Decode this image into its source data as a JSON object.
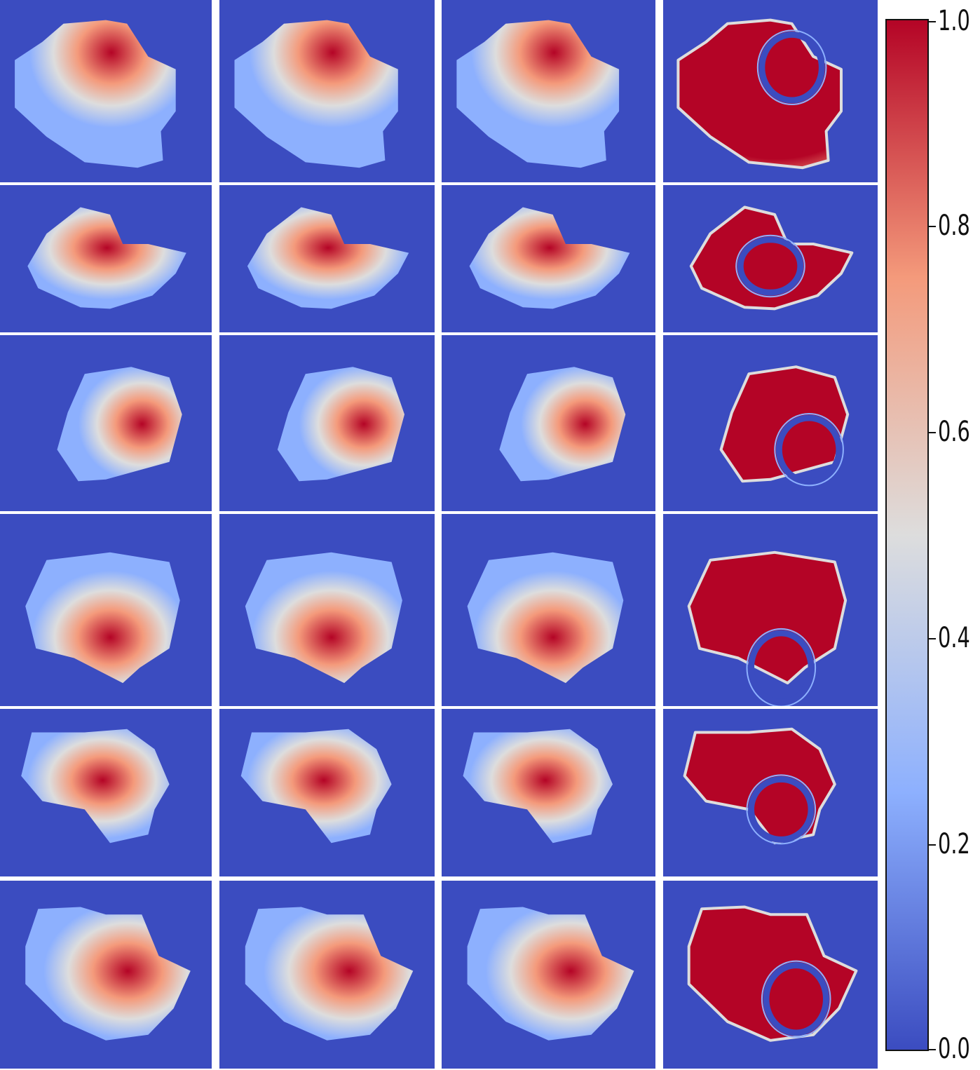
{
  "colormap": {
    "name": "coolwarm",
    "stops": [
      {
        "v": 0.0,
        "color": "#3b4cc0"
      },
      {
        "v": 0.25,
        "color": "#8db0fe"
      },
      {
        "v": 0.5,
        "color": "#dddddd"
      },
      {
        "v": 0.75,
        "color": "#f49a7b"
      },
      {
        "v": 1.0,
        "color": "#b40426"
      }
    ],
    "background": "#3b4cc0"
  },
  "colorbar": {
    "ticks": [
      {
        "value": 1.0,
        "label": "1.0"
      },
      {
        "value": 0.8,
        "label": "0.8"
      },
      {
        "value": 0.6,
        "label": "0.6"
      },
      {
        "value": 0.4,
        "label": "0.4"
      },
      {
        "value": 0.2,
        "label": "0.2"
      },
      {
        "value": 0.0,
        "label": "0.0"
      }
    ]
  },
  "grid": {
    "rows": 6,
    "columns": 4
  }
}
